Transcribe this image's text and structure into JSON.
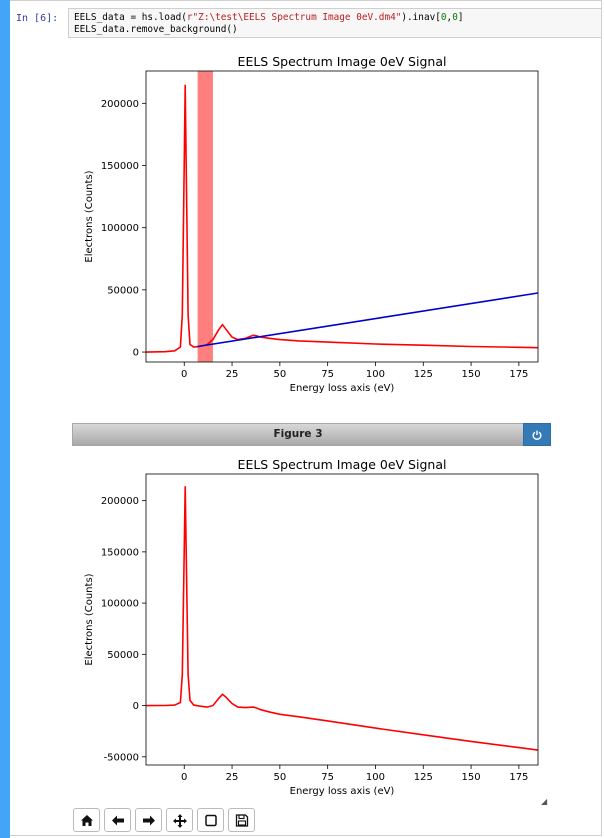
{
  "cell": {
    "prompt": "In [6]:",
    "code_line1_a": "EELS_data = hs.load(",
    "code_line1_str": "r\"Z:\\test\\EELS Spectrum Image 0eV.dm4\"",
    "code_line1_b": ").inav[",
    "code_line1_n1": "0",
    "code_line1_c": ",",
    "code_line1_n2": "0",
    "code_line1_d": "]",
    "code_line2": "EELS_data.remove_background()"
  },
  "figure_toolbar": {
    "title": "Figure 3",
    "power_icon": "power-icon"
  },
  "nav_toolbar": {
    "buttons": [
      "home-icon",
      "back-arrow-icon",
      "forward-arrow-icon",
      "pan-move-icon",
      "zoom-rect-icon",
      "save-icon"
    ]
  },
  "chart_data": [
    {
      "type": "line",
      "title": "EELS Spectrum Image 0eV Signal",
      "xlabel": "Energy loss axis (eV)",
      "ylabel": "Electrons (Counts)",
      "xlim": [
        -20,
        185
      ],
      "ylim": [
        -8000,
        226000
      ],
      "xticks": [
        0,
        25,
        50,
        75,
        100,
        125,
        150,
        175
      ],
      "yticks": [
        0,
        50000,
        100000,
        150000,
        200000
      ],
      "colors": {
        "signal": "#ff0000",
        "background_fit": "#0000cc",
        "span": "#ff7f7f"
      },
      "span": [
        7,
        15
      ],
      "series": [
        {
          "x": [
            -20,
            -10,
            -5,
            -2,
            -1,
            0,
            0.5,
            1,
            2,
            3,
            5,
            8,
            12,
            15,
            18,
            20,
            22,
            25,
            28,
            32,
            36,
            38,
            40,
            45,
            50,
            60,
            75,
            100,
            125,
            150,
            175,
            185
          ],
          "values": [
            0,
            300,
            1000,
            4000,
            30000,
            150000,
            215000,
            150000,
            30000,
            6000,
            4000,
            4500,
            6000,
            10000,
            18000,
            22000,
            18000,
            12000,
            10000,
            11000,
            13500,
            13000,
            12000,
            11000,
            10000,
            9000,
            8000,
            6500,
            5500,
            4500,
            3800,
            3500
          ]
        },
        {
          "x": [
            7,
            185
          ],
          "values": [
            4500,
            47500
          ]
        }
      ]
    },
    {
      "type": "line",
      "title": "EELS Spectrum Image 0eV Signal",
      "xlabel": "Energy loss axis (eV)",
      "ylabel": "Electrons (Counts)",
      "xlim": [
        -20,
        185
      ],
      "ylim": [
        -58000,
        226000
      ],
      "xticks": [
        0,
        25,
        50,
        75,
        100,
        125,
        150,
        175
      ],
      "yticks": [
        -50000,
        0,
        50000,
        100000,
        150000,
        200000
      ],
      "colors": {
        "signal": "#ff0000"
      },
      "series": [
        {
          "x": [
            -20,
            -10,
            -5,
            -2,
            -1,
            0,
            0.5,
            1,
            2,
            3,
            5,
            8,
            12,
            15,
            18,
            20,
            22,
            25,
            28,
            32,
            36,
            38,
            40,
            45,
            50,
            60,
            75,
            100,
            125,
            150,
            175,
            185
          ],
          "values": [
            0,
            100,
            500,
            3000,
            30000,
            150000,
            214000,
            150000,
            30000,
            5000,
            500,
            -500,
            -1500,
            0,
            7000,
            11000,
            8000,
            2000,
            -1500,
            -2000,
            -1500,
            -2500,
            -4000,
            -6500,
            -8500,
            -11000,
            -15000,
            -22000,
            -28500,
            -35000,
            -41000,
            -43500
          ]
        }
      ]
    }
  ]
}
